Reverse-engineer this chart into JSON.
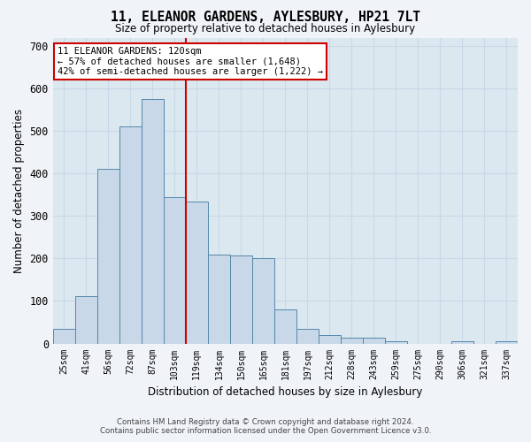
{
  "title": "11, ELEANOR GARDENS, AYLESBURY, HP21 7LT",
  "subtitle": "Size of property relative to detached houses in Aylesbury",
  "xlabel": "Distribution of detached houses by size in Aylesbury",
  "ylabel": "Number of detached properties",
  "bar_labels": [
    "25sqm",
    "41sqm",
    "56sqm",
    "72sqm",
    "87sqm",
    "103sqm",
    "119sqm",
    "134sqm",
    "150sqm",
    "165sqm",
    "181sqm",
    "197sqm",
    "212sqm",
    "228sqm",
    "243sqm",
    "259sqm",
    "275sqm",
    "290sqm",
    "306sqm",
    "321sqm",
    "337sqm"
  ],
  "bar_heights": [
    35,
    112,
    410,
    510,
    575,
    345,
    335,
    210,
    207,
    200,
    80,
    35,
    20,
    13,
    13,
    5,
    0,
    0,
    5,
    0,
    5
  ],
  "bar_color": "#c8d8e8",
  "bar_edgecolor": "#5588aa",
  "vline_x_index": 6.0,
  "annotation_title": "11 ELEANOR GARDENS: 120sqm",
  "annotation_line1": "← 57% of detached houses are smaller (1,648)",
  "annotation_line2": "42% of semi-detached houses are larger (1,222) →",
  "annotation_box_color": "#ffffff",
  "annotation_box_edgecolor": "#cc0000",
  "vline_color": "#cc0000",
  "ylim": [
    0,
    720
  ],
  "yticks": [
    0,
    100,
    200,
    300,
    400,
    500,
    600,
    700
  ],
  "grid_color": "#c8d8e8",
  "background_color": "#dce8f0",
  "fig_facecolor": "#f0f4f8",
  "footer1": "Contains HM Land Registry data © Crown copyright and database right 2024.",
  "footer2": "Contains public sector information licensed under the Open Government Licence v3.0."
}
